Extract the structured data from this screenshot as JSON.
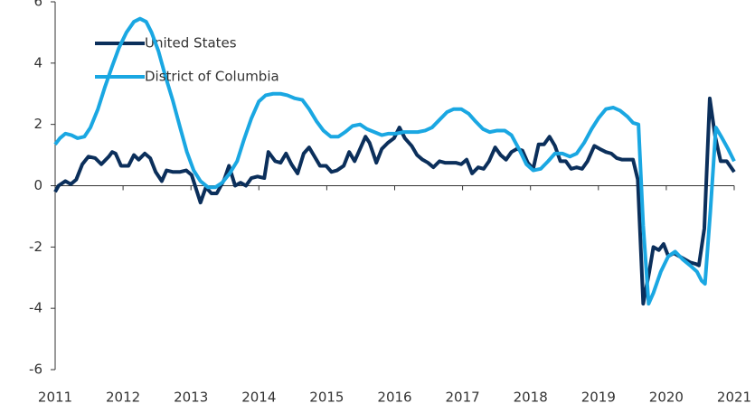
{
  "chart_data": {
    "type": "line",
    "xlim": [
      2011,
      2021
    ],
    "xticks": [
      2011,
      2012,
      2013,
      2014,
      2015,
      2016,
      2017,
      2018,
      2019,
      2020,
      2021
    ],
    "ylim": [
      -6,
      6
    ],
    "yticks": [
      -6,
      -4,
      -2,
      0,
      2,
      4,
      6
    ],
    "grid": false,
    "legend": "upper left",
    "series": [
      {
        "name": "United States",
        "color": "#0b2f5b",
        "x": [
          2011.0,
          2011.05,
          2011.15,
          2011.23,
          2011.31,
          2011.4,
          2011.49,
          2011.59,
          2011.68,
          2011.79,
          2011.84,
          2011.89,
          2011.97,
          2012.08,
          2012.16,
          2012.23,
          2012.32,
          2012.4,
          2012.48,
          2012.57,
          2012.64,
          2012.73,
          2012.84,
          2012.93,
          2013.01,
          2013.14,
          2013.22,
          2013.3,
          2013.38,
          2013.49,
          2013.56,
          2013.65,
          2013.73,
          2013.81,
          2013.89,
          2013.98,
          2014.08,
          2014.14,
          2014.24,
          2014.32,
          2014.4,
          2014.48,
          2014.57,
          2014.66,
          2014.74,
          2014.82,
          2014.9,
          2014.99,
          2015.07,
          2015.15,
          2015.25,
          2015.33,
          2015.41,
          2015.49,
          2015.57,
          2015.63,
          2015.73,
          2015.81,
          2015.9,
          2015.99,
          2016.07,
          2016.15,
          2016.25,
          2016.33,
          2016.41,
          2016.49,
          2016.57,
          2016.66,
          2016.74,
          2016.82,
          2016.9,
          2016.98,
          2017.06,
          2017.14,
          2017.23,
          2017.31,
          2017.39,
          2017.48,
          2017.56,
          2017.64,
          2017.72,
          2017.8,
          2017.88,
          2017.96,
          2018.04,
          2018.12,
          2018.2,
          2018.28,
          2018.36,
          2018.44,
          2018.52,
          2018.6,
          2018.68,
          2018.76,
          2018.84,
          2018.94,
          2019.02,
          2019.11,
          2019.19,
          2019.27,
          2019.35,
          2019.44,
          2019.51,
          2019.58,
          2019.66,
          2019.75,
          2019.81,
          2019.89,
          2019.96,
          2020.03,
          2020.11,
          2020.19,
          2020.27,
          2020.35,
          2020.43,
          2020.48,
          2020.56,
          2020.64,
          2020.72,
          2020.8,
          2020.89,
          2021.0
        ],
        "values": [
          -0.2,
          0.0,
          0.15,
          0.05,
          0.2,
          0.7,
          0.95,
          0.9,
          0.7,
          0.95,
          1.1,
          1.05,
          0.65,
          0.65,
          1.0,
          0.85,
          1.05,
          0.9,
          0.45,
          0.15,
          0.5,
          0.45,
          0.45,
          0.5,
          0.35,
          -0.55,
          -0.05,
          -0.25,
          -0.25,
          0.2,
          0.65,
          0.0,
          0.1,
          0.0,
          0.25,
          0.3,
          0.25,
          1.1,
          0.8,
          0.75,
          1.05,
          0.7,
          0.4,
          1.05,
          1.25,
          0.95,
          0.65,
          0.65,
          0.45,
          0.5,
          0.65,
          1.1,
          0.8,
          1.2,
          1.6,
          1.4,
          0.75,
          1.2,
          1.4,
          1.55,
          1.9,
          1.55,
          1.3,
          1.0,
          0.85,
          0.75,
          0.6,
          0.8,
          0.75,
          0.75,
          0.75,
          0.7,
          0.85,
          0.4,
          0.6,
          0.55,
          0.8,
          1.25,
          1.0,
          0.85,
          1.1,
          1.2,
          1.15,
          0.75,
          0.55,
          1.35,
          1.35,
          1.6,
          1.3,
          0.8,
          0.8,
          0.55,
          0.6,
          0.55,
          0.8,
          1.3,
          1.2,
          1.1,
          1.05,
          0.9,
          0.85,
          0.85,
          0.85,
          0.2,
          -3.85,
          -2.8,
          -2.0,
          -2.1,
          -1.9,
          -2.3,
          -2.2,
          -2.3,
          -2.4,
          -2.5,
          -2.55,
          -2.6,
          -1.4,
          2.85,
          1.6,
          0.8,
          0.8,
          0.45
        ]
      },
      {
        "name": "District of Columbia",
        "color": "#1aa7e2",
        "x": [
          2011.0,
          2011.07,
          2011.15,
          2011.24,
          2011.33,
          2011.43,
          2011.52,
          2011.63,
          2011.73,
          2011.84,
          2011.94,
          2012.05,
          2012.16,
          2012.25,
          2012.34,
          2012.42,
          2012.52,
          2012.62,
          2012.73,
          2012.84,
          2012.94,
          2013.04,
          2013.14,
          2013.25,
          2013.36,
          2013.46,
          2013.57,
          2013.68,
          2013.78,
          2013.89,
          2014.0,
          2014.1,
          2014.21,
          2014.32,
          2014.42,
          2014.53,
          2014.64,
          2014.74,
          2014.85,
          2014.95,
          2015.06,
          2015.17,
          2015.27,
          2015.38,
          2015.49,
          2015.59,
          2015.7,
          2015.81,
          2015.91,
          2016.02,
          2016.13,
          2016.23,
          2016.34,
          2016.45,
          2016.55,
          2016.66,
          2016.77,
          2016.87,
          2016.98,
          2017.09,
          2017.19,
          2017.3,
          2017.4,
          2017.51,
          2017.62,
          2017.72,
          2017.83,
          2017.94,
          2018.04,
          2018.15,
          2018.26,
          2018.36,
          2018.47,
          2018.58,
          2018.68,
          2018.79,
          2018.9,
          2019.0,
          2019.11,
          2019.22,
          2019.32,
          2019.43,
          2019.51,
          2019.59,
          2019.66,
          2019.74,
          2019.81,
          2019.92,
          2020.03,
          2020.13,
          2020.24,
          2020.35,
          2020.45,
          2020.52,
          2020.57,
          2020.65,
          2020.73,
          2020.81,
          2020.91,
          2021.0
        ],
        "values": [
          1.35,
          1.55,
          1.7,
          1.65,
          1.55,
          1.6,
          1.9,
          2.5,
          3.2,
          3.9,
          4.5,
          5.0,
          5.35,
          5.45,
          5.35,
          5.0,
          4.4,
          3.6,
          2.8,
          1.9,
          1.1,
          0.5,
          0.15,
          -0.05,
          -0.05,
          0.1,
          0.4,
          0.8,
          1.5,
          2.2,
          2.75,
          2.95,
          3.0,
          3.0,
          2.95,
          2.85,
          2.8,
          2.5,
          2.1,
          1.8,
          1.6,
          1.6,
          1.75,
          1.95,
          2.0,
          1.85,
          1.75,
          1.65,
          1.7,
          1.7,
          1.75,
          1.75,
          1.75,
          1.8,
          1.9,
          2.15,
          2.4,
          2.5,
          2.5,
          2.35,
          2.1,
          1.85,
          1.75,
          1.8,
          1.8,
          1.65,
          1.2,
          0.7,
          0.5,
          0.55,
          0.8,
          1.05,
          1.05,
          0.95,
          1.05,
          1.4,
          1.85,
          2.2,
          2.5,
          2.55,
          2.45,
          2.25,
          2.05,
          2.0,
          -1.3,
          -3.85,
          -3.5,
          -2.8,
          -2.3,
          -2.15,
          -2.4,
          -2.6,
          -2.8,
          -3.1,
          -3.2,
          -0.8,
          1.9,
          1.6,
          1.2,
          0.8
        ]
      }
    ]
  }
}
